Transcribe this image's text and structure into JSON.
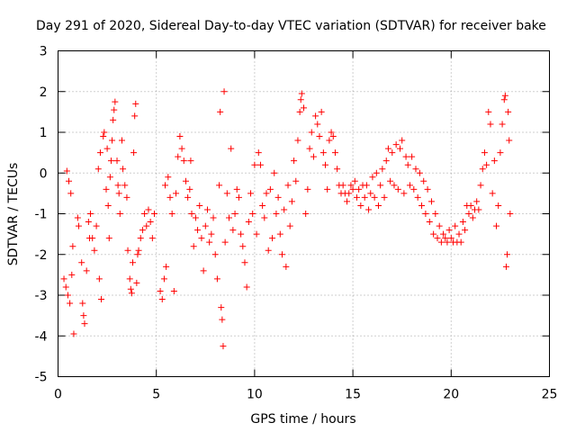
{
  "chart_data": {
    "type": "scatter",
    "title": "Day 291 of 2020, Sidereal Day-to-day VTEC variation (SDTVAR) for receiver bake",
    "xlabel": "GPS time / hours",
    "ylabel": "SDTVAR / TECUs",
    "xlim": [
      0,
      25
    ],
    "ylim": [
      -5,
      3
    ],
    "x_ticks": [
      0,
      5,
      10,
      15,
      20,
      25
    ],
    "y_ticks": [
      -5,
      -4,
      -3,
      -2,
      -1,
      0,
      1,
      2,
      3
    ],
    "grid": true,
    "marker": "+",
    "marker_color": "#ff0000",
    "series": [
      {
        "name": "SDTVAR",
        "points": [
          [
            0.3,
            -2.6
          ],
          [
            0.4,
            -2.8
          ],
          [
            0.45,
            0.05
          ],
          [
            0.5,
            -3.0
          ],
          [
            0.55,
            -0.2
          ],
          [
            0.6,
            -3.2
          ],
          [
            0.65,
            -0.5
          ],
          [
            0.7,
            -2.5
          ],
          [
            0.75,
            -1.8
          ],
          [
            0.8,
            -3.95
          ],
          [
            1.0,
            -1.1
          ],
          [
            1.05,
            -1.3
          ],
          [
            1.2,
            -2.2
          ],
          [
            1.25,
            -3.2
          ],
          [
            1.3,
            -3.5
          ],
          [
            1.35,
            -3.7
          ],
          [
            1.45,
            -2.4
          ],
          [
            1.55,
            -1.2
          ],
          [
            1.6,
            -1.6
          ],
          [
            1.65,
            -1.0
          ],
          [
            1.75,
            -1.6
          ],
          [
            1.85,
            -1.9
          ],
          [
            1.95,
            -1.3
          ],
          [
            2.05,
            0.1
          ],
          [
            2.1,
            -2.6
          ],
          [
            2.15,
            0.5
          ],
          [
            2.2,
            -3.1
          ],
          [
            2.3,
            0.9
          ],
          [
            2.35,
            1.0
          ],
          [
            2.45,
            -0.4
          ],
          [
            2.5,
            0.6
          ],
          [
            2.55,
            -0.8
          ],
          [
            2.6,
            -1.6
          ],
          [
            2.65,
            -0.1
          ],
          [
            2.7,
            0.3
          ],
          [
            2.75,
            0.8
          ],
          [
            2.8,
            1.3
          ],
          [
            2.85,
            1.55
          ],
          [
            2.9,
            1.75
          ],
          [
            3.0,
            0.3
          ],
          [
            3.05,
            -0.3
          ],
          [
            3.1,
            -0.5
          ],
          [
            3.15,
            -1.0
          ],
          [
            3.25,
            0.8
          ],
          [
            3.3,
            0.1
          ],
          [
            3.4,
            -0.3
          ],
          [
            3.5,
            -0.6
          ],
          [
            3.55,
            -1.9
          ],
          [
            3.65,
            -2.6
          ],
          [
            3.7,
            -2.85
          ],
          [
            3.75,
            -2.95
          ],
          [
            3.8,
            -2.2
          ],
          [
            3.85,
            0.5
          ],
          [
            3.9,
            1.4
          ],
          [
            3.95,
            1.7
          ],
          [
            4.0,
            -2.7
          ],
          [
            4.05,
            -2.0
          ],
          [
            4.1,
            -1.9
          ],
          [
            4.2,
            -1.6
          ],
          [
            4.3,
            -1.4
          ],
          [
            4.4,
            -1.0
          ],
          [
            4.5,
            -1.3
          ],
          [
            4.6,
            -0.9
          ],
          [
            4.7,
            -1.2
          ],
          [
            4.8,
            -1.6
          ],
          [
            4.9,
            -1.0
          ],
          [
            5.2,
            -2.9
          ],
          [
            5.3,
            -3.1
          ],
          [
            5.4,
            -2.6
          ],
          [
            5.45,
            -0.3
          ],
          [
            5.5,
            -2.3
          ],
          [
            5.6,
            -0.1
          ],
          [
            5.7,
            -0.6
          ],
          [
            5.8,
            -1.0
          ],
          [
            5.9,
            -2.9
          ],
          [
            6.0,
            -0.5
          ],
          [
            6.1,
            0.4
          ],
          [
            6.2,
            0.9
          ],
          [
            6.3,
            0.6
          ],
          [
            6.4,
            0.3
          ],
          [
            6.5,
            -0.2
          ],
          [
            6.6,
            -0.6
          ],
          [
            6.7,
            -0.4
          ],
          [
            6.75,
            0.3
          ],
          [
            6.8,
            -1.0
          ],
          [
            6.9,
            -1.8
          ],
          [
            7.0,
            -1.1
          ],
          [
            7.1,
            -1.4
          ],
          [
            7.2,
            -0.8
          ],
          [
            7.3,
            -1.6
          ],
          [
            7.4,
            -2.4
          ],
          [
            7.5,
            -1.3
          ],
          [
            7.6,
            -0.9
          ],
          [
            7.7,
            -1.7
          ],
          [
            7.8,
            -1.5
          ],
          [
            7.9,
            -1.1
          ],
          [
            8.0,
            -2.0
          ],
          [
            8.1,
            -2.6
          ],
          [
            8.2,
            -0.3
          ],
          [
            8.25,
            1.5
          ],
          [
            8.3,
            -3.3
          ],
          [
            8.35,
            -3.6
          ],
          [
            8.4,
            -4.25
          ],
          [
            8.45,
            2.0
          ],
          [
            8.5,
            -1.7
          ],
          [
            8.6,
            -0.5
          ],
          [
            8.7,
            -1.1
          ],
          [
            8.8,
            0.6
          ],
          [
            8.9,
            -1.4
          ],
          [
            9.0,
            -1.0
          ],
          [
            9.1,
            -0.4
          ],
          [
            9.2,
            -0.6
          ],
          [
            9.3,
            -1.5
          ],
          [
            9.4,
            -1.8
          ],
          [
            9.5,
            -2.2
          ],
          [
            9.6,
            -2.8
          ],
          [
            9.7,
            -1.2
          ],
          [
            9.8,
            -0.5
          ],
          [
            9.9,
            -1.0
          ],
          [
            10.0,
            0.2
          ],
          [
            10.1,
            -1.5
          ],
          [
            10.2,
            0.5
          ],
          [
            10.3,
            0.2
          ],
          [
            10.4,
            -0.8
          ],
          [
            10.5,
            -1.1
          ],
          [
            10.6,
            -0.5
          ],
          [
            10.7,
            -1.9
          ],
          [
            10.8,
            -0.4
          ],
          [
            10.9,
            -1.6
          ],
          [
            11.0,
            0.0
          ],
          [
            11.1,
            -1.0
          ],
          [
            11.2,
            -0.6
          ],
          [
            11.3,
            -1.5
          ],
          [
            11.4,
            -2.0
          ],
          [
            11.5,
            -0.9
          ],
          [
            11.6,
            -2.3
          ],
          [
            11.7,
            -0.3
          ],
          [
            11.8,
            -1.3
          ],
          [
            11.9,
            -0.7
          ],
          [
            12.0,
            0.3
          ],
          [
            12.1,
            -0.2
          ],
          [
            12.2,
            0.8
          ],
          [
            12.3,
            1.5
          ],
          [
            12.35,
            1.8
          ],
          [
            12.4,
            1.95
          ],
          [
            12.5,
            1.6
          ],
          [
            12.6,
            -1.0
          ],
          [
            12.7,
            -0.4
          ],
          [
            12.8,
            0.6
          ],
          [
            12.9,
            1.0
          ],
          [
            13.0,
            0.4
          ],
          [
            13.1,
            1.4
          ],
          [
            13.2,
            1.2
          ],
          [
            13.3,
            0.9
          ],
          [
            13.4,
            1.5
          ],
          [
            13.5,
            0.5
          ],
          [
            13.6,
            0.2
          ],
          [
            13.7,
            -0.4
          ],
          [
            13.8,
            0.8
          ],
          [
            13.9,
            1.0
          ],
          [
            14.0,
            0.9
          ],
          [
            14.1,
            0.5
          ],
          [
            14.2,
            0.1
          ],
          [
            14.3,
            -0.3
          ],
          [
            14.4,
            -0.5
          ],
          [
            14.5,
            -0.3
          ],
          [
            14.6,
            -0.5
          ],
          [
            14.7,
            -0.7
          ],
          [
            14.8,
            -0.5
          ],
          [
            14.9,
            -0.3
          ],
          [
            15.0,
            -0.4
          ],
          [
            15.1,
            -0.2
          ],
          [
            15.2,
            -0.6
          ],
          [
            15.3,
            -0.4
          ],
          [
            15.4,
            -0.8
          ],
          [
            15.5,
            -0.3
          ],
          [
            15.6,
            -0.6
          ],
          [
            15.7,
            -0.3
          ],
          [
            15.8,
            -0.9
          ],
          [
            15.9,
            -0.5
          ],
          [
            16.0,
            -0.1
          ],
          [
            16.1,
            -0.6
          ],
          [
            16.2,
            0.0
          ],
          [
            16.3,
            -0.8
          ],
          [
            16.4,
            -0.3
          ],
          [
            16.5,
            0.1
          ],
          [
            16.6,
            -0.6
          ],
          [
            16.7,
            0.3
          ],
          [
            16.8,
            0.6
          ],
          [
            16.9,
            -0.2
          ],
          [
            17.0,
            0.5
          ],
          [
            17.1,
            -0.3
          ],
          [
            17.2,
            0.7
          ],
          [
            17.3,
            -0.4
          ],
          [
            17.4,
            0.6
          ],
          [
            17.5,
            0.8
          ],
          [
            17.6,
            -0.5
          ],
          [
            17.7,
            0.4
          ],
          [
            17.8,
            0.2
          ],
          [
            17.9,
            -0.3
          ],
          [
            18.0,
            0.4
          ],
          [
            18.1,
            -0.4
          ],
          [
            18.2,
            0.1
          ],
          [
            18.3,
            -0.6
          ],
          [
            18.4,
            0.0
          ],
          [
            18.5,
            -0.8
          ],
          [
            18.6,
            -0.2
          ],
          [
            18.7,
            -1.0
          ],
          [
            18.8,
            -0.4
          ],
          [
            18.9,
            -1.2
          ],
          [
            19.0,
            -0.7
          ],
          [
            19.1,
            -1.5
          ],
          [
            19.2,
            -1.0
          ],
          [
            19.3,
            -1.6
          ],
          [
            19.4,
            -1.3
          ],
          [
            19.5,
            -1.7
          ],
          [
            19.6,
            -1.5
          ],
          [
            19.7,
            -1.6
          ],
          [
            19.8,
            -1.7
          ],
          [
            19.9,
            -1.4
          ],
          [
            20.0,
            -1.6
          ],
          [
            20.1,
            -1.7
          ],
          [
            20.2,
            -1.3
          ],
          [
            20.3,
            -1.7
          ],
          [
            20.4,
            -1.5
          ],
          [
            20.5,
            -1.7
          ],
          [
            20.6,
            -1.2
          ],
          [
            20.7,
            -1.4
          ],
          [
            20.8,
            -0.8
          ],
          [
            20.9,
            -1.0
          ],
          [
            21.0,
            -0.8
          ],
          [
            21.1,
            -1.1
          ],
          [
            21.2,
            -0.9
          ],
          [
            21.3,
            -0.7
          ],
          [
            21.4,
            -0.9
          ],
          [
            21.5,
            -0.3
          ],
          [
            21.6,
            0.1
          ],
          [
            21.7,
            0.5
          ],
          [
            21.8,
            0.2
          ],
          [
            21.9,
            1.5
          ],
          [
            22.0,
            1.2
          ],
          [
            22.1,
            -0.5
          ],
          [
            22.2,
            0.3
          ],
          [
            22.3,
            -1.3
          ],
          [
            22.4,
            -0.8
          ],
          [
            22.5,
            0.5
          ],
          [
            22.6,
            1.2
          ],
          [
            22.7,
            1.8
          ],
          [
            22.75,
            1.9
          ],
          [
            22.8,
            -2.3
          ],
          [
            22.85,
            -2.0
          ],
          [
            22.9,
            1.5
          ],
          [
            22.95,
            0.8
          ],
          [
            23.0,
            -1.0
          ]
        ]
      }
    ]
  }
}
